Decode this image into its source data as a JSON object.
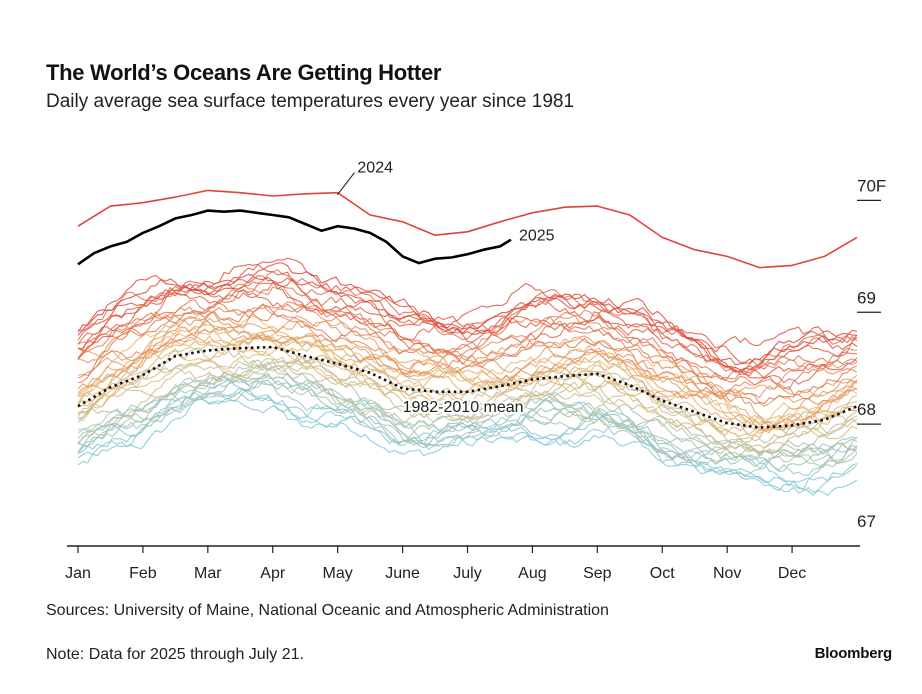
{
  "header": {
    "title": "The World’s Oceans Are Getting Hotter",
    "subtitle": "Daily average sea surface temperatures every year since 1981"
  },
  "footer": {
    "sources": "Sources: University of Maine, National Oceanic and Atmospheric Administration",
    "note": "Note: Data for 2025 through July 21.",
    "brand": "Bloomberg"
  },
  "chart_data": {
    "type": "line",
    "title": "The World’s Oceans Are Getting Hotter",
    "subtitle": "Daily average sea surface temperatures every year since 1981",
    "x_unit": "month",
    "x_ticks": [
      "Jan",
      "Feb",
      "Mar",
      "Apr",
      "May",
      "June",
      "July",
      "Aug",
      "Sep",
      "Oct",
      "Nov",
      "Dec"
    ],
    "x_range": [
      1,
      13
    ],
    "y_ticks": [
      {
        "value": 67,
        "label": "67"
      },
      {
        "value": 68,
        "label": "68"
      },
      {
        "value": 69,
        "label": "69"
      },
      {
        "value": 70,
        "label": "70F"
      }
    ],
    "ylim": [
      67,
      70.2
    ],
    "grid": false,
    "color_scale": {
      "oldest": "#7cc9dc",
      "middle": "#e8b86e",
      "newest": "#e0443a"
    },
    "background_years": {
      "first_year": 1981,
      "last_year": 2023,
      "note": "Individual years drawn as thin lines colored from blue (oldest) to red (newest)"
    },
    "series": [
      {
        "name": "2024",
        "color": "#e0443a",
        "x": [
          1.0,
          1.5,
          2.0,
          2.5,
          3.0,
          3.5,
          4.0,
          4.5,
          5.0,
          5.5,
          6.0,
          6.5,
          7.0,
          7.5,
          8.0,
          8.5,
          9.0,
          9.5,
          10.0,
          10.5,
          11.0,
          11.5,
          12.0,
          12.5,
          13.0
        ],
        "values": [
          69.76,
          69.94,
          69.97,
          70.02,
          70.08,
          70.06,
          70.03,
          70.05,
          70.06,
          69.86,
          69.8,
          69.68,
          69.71,
          69.8,
          69.88,
          69.93,
          69.94,
          69.86,
          69.66,
          69.55,
          69.49,
          69.39,
          69.41,
          69.49,
          69.66
        ]
      },
      {
        "name": "2025",
        "color": "#000000",
        "x": [
          1.0,
          1.25,
          1.5,
          1.75,
          2.0,
          2.25,
          2.5,
          2.75,
          3.0,
          3.25,
          3.5,
          3.75,
          4.0,
          4.25,
          4.5,
          4.75,
          5.0,
          5.25,
          5.5,
          5.75,
          6.0,
          6.25,
          6.5,
          6.75,
          7.0,
          7.25,
          7.5,
          7.67
        ],
        "values": [
          69.42,
          69.52,
          69.58,
          69.62,
          69.7,
          69.76,
          69.83,
          69.86,
          69.9,
          69.89,
          69.9,
          69.88,
          69.86,
          69.84,
          69.78,
          69.72,
          69.76,
          69.74,
          69.7,
          69.62,
          69.49,
          69.43,
          69.47,
          69.48,
          69.51,
          69.55,
          69.58,
          69.64
        ]
      },
      {
        "name": "1982-2010 mean",
        "color": "#111111",
        "style": "dotted",
        "x": [
          1.0,
          1.5,
          2.0,
          2.5,
          3.0,
          3.5,
          4.0,
          4.5,
          5.0,
          5.5,
          6.0,
          6.5,
          7.0,
          7.5,
          8.0,
          8.5,
          9.0,
          9.5,
          10.0,
          10.5,
          11.0,
          11.5,
          12.0,
          12.5,
          13.0
        ],
        "values": [
          68.15,
          68.32,
          68.43,
          68.6,
          68.65,
          68.67,
          68.68,
          68.6,
          68.53,
          68.45,
          68.31,
          68.28,
          68.28,
          68.33,
          68.39,
          68.42,
          68.44,
          68.34,
          68.2,
          68.1,
          68.0,
          67.96,
          67.98,
          68.03,
          68.15
        ]
      }
    ],
    "annotations": [
      {
        "text": "2024",
        "target_series": "2024"
      },
      {
        "text": "2025",
        "target_series": "2025"
      },
      {
        "text": "1982-2010 mean",
        "target_series": "1982-2010 mean"
      }
    ]
  }
}
